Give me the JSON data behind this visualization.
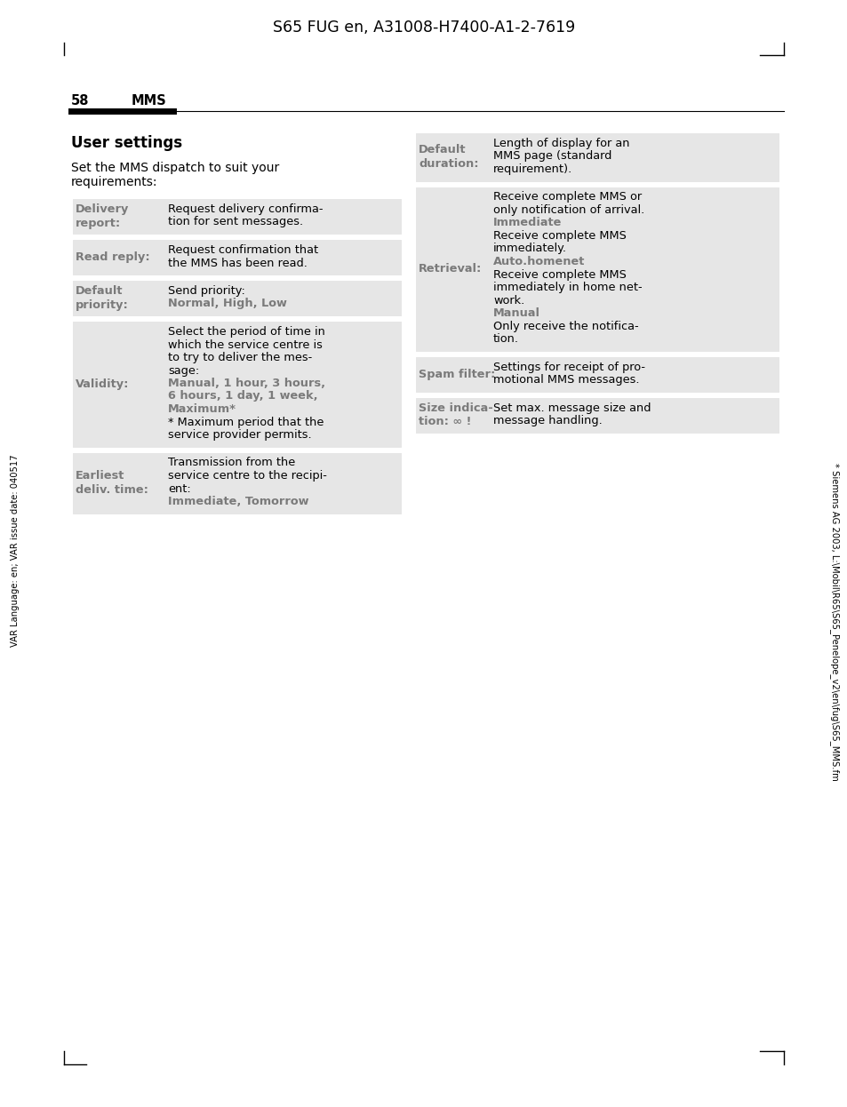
{
  "page_title": "S65 FUG en, A31008-H7400-A1-2-7619",
  "header_number": "58",
  "header_section": "MMS",
  "section_title": "User settings",
  "section_intro_line1": "Set the MMS dispatch to suit your",
  "section_intro_line2": "requirements:",
  "left_side_bar_text": "VAR Language: en; VAR issue date: 040517",
  "right_side_bar_text": "* Siemens AG 2003, L:\\Mobil\\R65\\S65_Penelope_v2\\en\\fug\\S65_MMS.fm",
  "table_bg": "#e6e6e6",
  "key_color": "#7a7a7a",
  "option_color": "#7a7a7a",
  "normal_color": "#000000",
  "white": "#ffffff",
  "left_table": [
    {
      "key": "Delivery\nreport:",
      "values": [
        {
          "text": "Request delivery confirma-",
          "style": "normal"
        },
        {
          "text": "tion for sent messages.",
          "style": "normal"
        }
      ]
    },
    {
      "key": "Read reply:",
      "values": [
        {
          "text": "Request confirmation that",
          "style": "normal"
        },
        {
          "text": "the MMS has been read.",
          "style": "normal"
        }
      ]
    },
    {
      "key": "Default\npriority:",
      "values": [
        {
          "text": "Send priority:",
          "style": "normal"
        },
        {
          "text": "Normal, High, Low",
          "style": "option"
        }
      ]
    },
    {
      "key": "Validity:",
      "values": [
        {
          "text": "Select the period of time in",
          "style": "normal"
        },
        {
          "text": "which the service centre is",
          "style": "normal"
        },
        {
          "text": "to try to deliver the mes-",
          "style": "normal"
        },
        {
          "text": "sage:",
          "style": "normal"
        },
        {
          "text": "Manual, 1 hour, 3 hours,",
          "style": "option"
        },
        {
          "text": "6 hours, 1 day, 1 week,",
          "style": "option"
        },
        {
          "text": "Maximum*",
          "style": "option"
        },
        {
          "text": "* Maximum period that the",
          "style": "normal"
        },
        {
          "text": "service provider permits.",
          "style": "normal"
        }
      ]
    },
    {
      "key": "Earliest\ndeliv. time:",
      "values": [
        {
          "text": "Transmission from the",
          "style": "normal"
        },
        {
          "text": "service centre to the recipi-",
          "style": "normal"
        },
        {
          "text": "ent:",
          "style": "normal"
        },
        {
          "text": "Immediate, Tomorrow",
          "style": "option"
        }
      ]
    }
  ],
  "right_table": [
    {
      "key": "Default\nduration:",
      "values": [
        {
          "text": "Length of display for an",
          "style": "normal"
        },
        {
          "text": "MMS page (standard",
          "style": "normal"
        },
        {
          "text": "requirement).",
          "style": "normal"
        }
      ]
    },
    {
      "key": "Retrieval:",
      "values": [
        {
          "text": "Receive complete MMS or",
          "style": "normal"
        },
        {
          "text": "only notification of arrival.",
          "style": "normal"
        },
        {
          "text": "Immediate",
          "style": "option"
        },
        {
          "text": "Receive complete MMS",
          "style": "normal"
        },
        {
          "text": "immediately.",
          "style": "normal"
        },
        {
          "text": "Auto.homenet",
          "style": "option"
        },
        {
          "text": "Receive complete MMS",
          "style": "normal"
        },
        {
          "text": "immediately in home net-",
          "style": "normal"
        },
        {
          "text": "work.",
          "style": "normal"
        },
        {
          "text": "Manual",
          "style": "option"
        },
        {
          "text": "Only receive the notifica-",
          "style": "normal"
        },
        {
          "text": "tion.",
          "style": "normal"
        }
      ]
    },
    {
      "key": "Spam filter:",
      "values": [
        {
          "text": "Settings for receipt of pro-",
          "style": "normal"
        },
        {
          "text": "motional MMS messages.",
          "style": "normal"
        }
      ]
    },
    {
      "key": "Size indica-\ntion: ∞ !",
      "values": [
        {
          "text": "Set max. message size and",
          "style": "normal"
        },
        {
          "text": "message handling.",
          "style": "normal"
        }
      ]
    }
  ]
}
